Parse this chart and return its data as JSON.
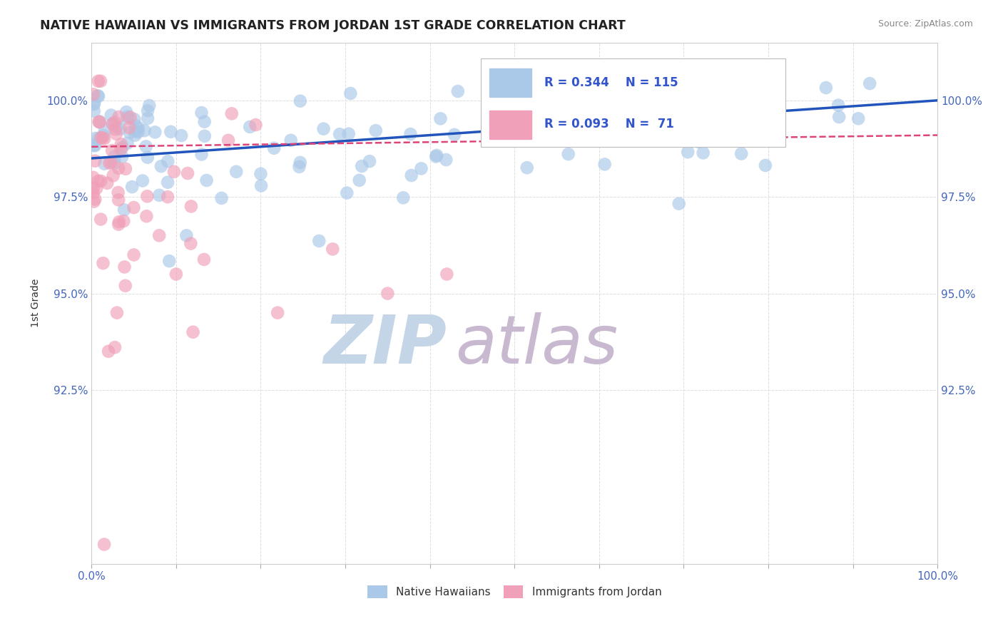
{
  "title": "NATIVE HAWAIIAN VS IMMIGRANTS FROM JORDAN 1ST GRADE CORRELATION CHART",
  "source": "Source: ZipAtlas.com",
  "ylabel": "1st Grade",
  "xlim": [
    0,
    100
  ],
  "ylim": [
    88.0,
    101.5
  ],
  "yticks": [
    92.5,
    95.0,
    97.5,
    100.0
  ],
  "ytick_labels": [
    "92.5%",
    "95.0%",
    "97.5%",
    "100.0%"
  ],
  "xticks": [
    0,
    10,
    20,
    30,
    40,
    50,
    60,
    70,
    80,
    90,
    100
  ],
  "xtick_labels": [
    "0.0%",
    "",
    "",
    "",
    "",
    "",
    "",
    "",
    "",
    "",
    "100.0%"
  ],
  "legend_r_blue": "R = 0.344",
  "legend_n_blue": "N = 115",
  "legend_r_pink": "R = 0.093",
  "legend_n_pink": "N =  71",
  "blue_color": "#aac8e8",
  "pink_color": "#f0a0b8",
  "trendline_blue_color": "#2255bb",
  "trendline_pink_color": "#dd4477",
  "watermark_zip": "ZIP",
  "watermark_atlas": "atlas",
  "watermark_color_zip": "#c5d5e8",
  "watermark_color_atlas": "#c8b8d0",
  "background_color": "#ffffff",
  "grid_color": "#dddddd",
  "legend_text_color": "#3355cc",
  "axis_text_color": "#4466bb",
  "title_color": "#222222",
  "source_color": "#888888",
  "ylabel_color": "#333333"
}
